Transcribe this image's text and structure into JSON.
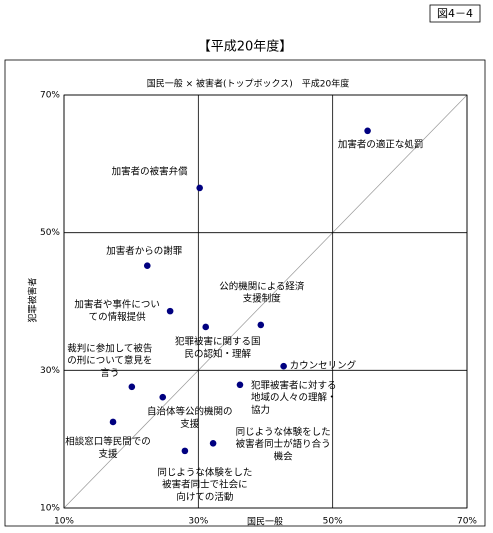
{
  "figure_label": "図4－4",
  "chart_data": {
    "type": "scatter",
    "title": "【平成20年度】",
    "subtitle": "国民一般 × 被害者(トップボックス)　平成20年度",
    "x_label": "国民一般",
    "y_label": "犯罪被害者",
    "xlim": [
      10,
      70
    ],
    "ylim": [
      10,
      70
    ],
    "xticks": [
      {
        "value": 10,
        "label": "10%"
      },
      {
        "value": 30,
        "label": "30%"
      },
      {
        "value": 50,
        "label": "50%"
      },
      {
        "value": 70,
        "label": "70%"
      }
    ],
    "yticks": [
      {
        "value": 10,
        "label": "10%"
      },
      {
        "value": 30,
        "label": "30%"
      },
      {
        "value": 50,
        "label": "50%"
      },
      {
        "value": 70,
        "label": "70%"
      }
    ],
    "grid": true,
    "color": "#000080",
    "x": [
      55.2,
      30.2,
      22.4,
      25.8,
      39.3,
      31.1,
      42.7,
      20.1,
      36.2,
      24.7,
      17.3,
      32.2,
      28.0
    ],
    "values": [
      64.8,
      56.5,
      45.2,
      38.6,
      36.6,
      36.3,
      30.6,
      27.6,
      27.9,
      26.1,
      22.5,
      19.4,
      18.3
    ],
    "point_labels": [
      [
        "加害者の適正な処罰"
      ],
      [
        "加害者の被害弁償"
      ],
      [
        "加害者からの謝罪"
      ],
      [
        "加害者や事件につい",
        "ての情報提供"
      ],
      [
        "公的機関による経済",
        "支援制度"
      ],
      [
        "犯罪被害に関する国",
        "民の認知・理解"
      ],
      [
        "カウンセリング"
      ],
      [
        "裁判に参加して被告",
        "の刑について意見を",
        "言う"
      ],
      [
        "犯罪被害者に対する",
        "地域の人々の理解・",
        "協力"
      ],
      [
        "自治体等公的機関の",
        "支援"
      ],
      [
        "相談窓口等民間での",
        "支援"
      ],
      [
        "同じような体験をした",
        "被害者同士が語り合う",
        "機会"
      ],
      [
        "同じような体験をした",
        "被害者同士で社会に",
        "向けての活動"
      ]
    ]
  }
}
